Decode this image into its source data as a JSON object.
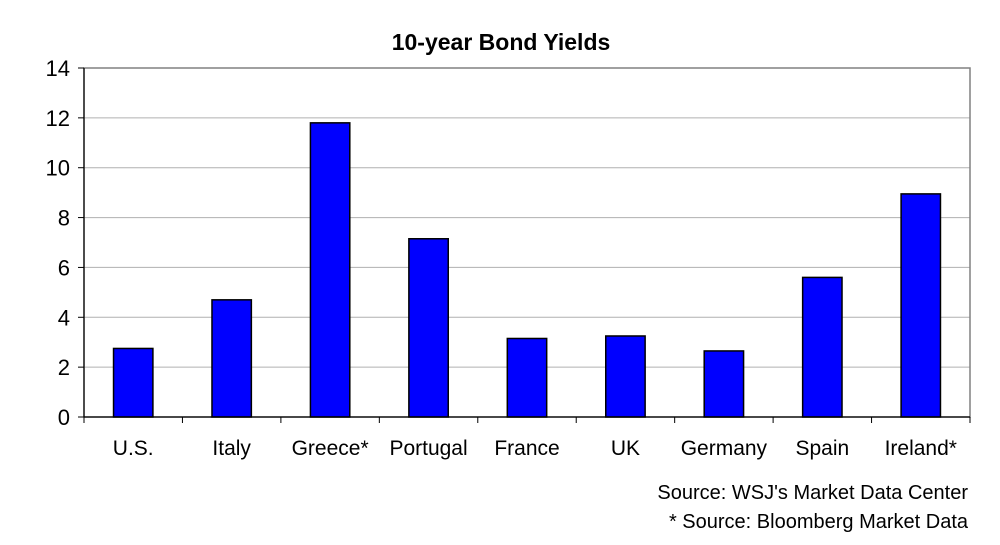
{
  "chart_data": {
    "type": "bar",
    "title": "10-year Bond Yields",
    "categories": [
      "U.S.",
      "Italy",
      "Greece*",
      "Portugal",
      "France",
      "UK",
      "Germany",
      "Spain",
      "Ireland*"
    ],
    "values": [
      2.75,
      4.7,
      11.8,
      7.15,
      3.15,
      3.25,
      2.65,
      5.6,
      8.95
    ],
    "ylim": [
      0,
      14
    ],
    "yticks": [
      "0",
      "2",
      "4",
      "6",
      "8",
      "10",
      "12",
      "14"
    ],
    "grid": true,
    "bar_color": "#0000ff",
    "sources": [
      "Source: WSJ's Market Data Center",
      "* Source: Bloomberg Market Data"
    ]
  }
}
